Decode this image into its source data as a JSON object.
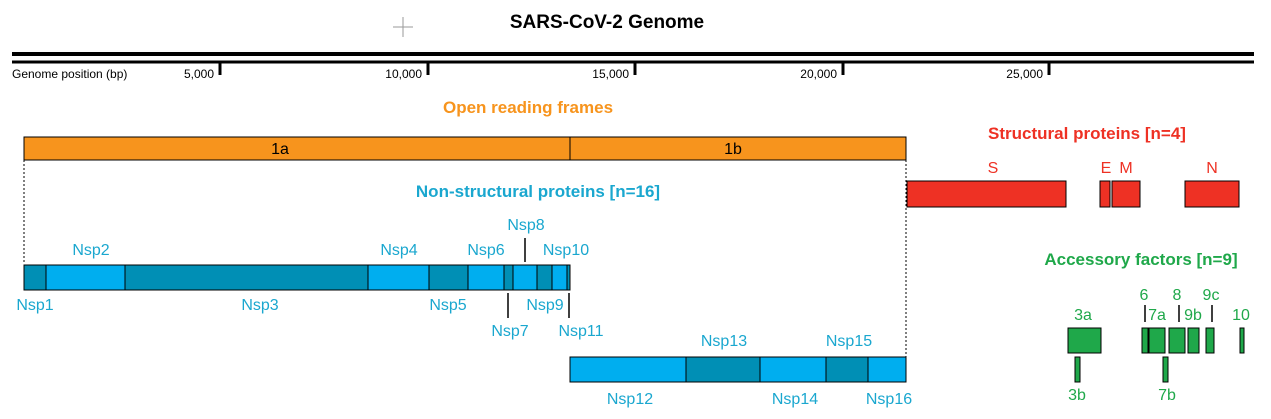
{
  "title": "SARS-CoV-2 Genome",
  "axis": {
    "label": "Genome position (bp)",
    "ticks": [
      "5,000",
      "10,000",
      "15,000",
      "20,000",
      "25,000"
    ]
  },
  "orf": {
    "heading": "Open reading frames",
    "frames": [
      "1a",
      "1b"
    ]
  },
  "structural": {
    "heading": "Structural proteins [n=4]",
    "items": [
      "S",
      "E",
      "M",
      "N"
    ]
  },
  "nsp": {
    "heading": "Non-structural proteins [n=16]",
    "items": [
      "Nsp1",
      "Nsp2",
      "Nsp3",
      "Nsp4",
      "Nsp5",
      "Nsp6",
      "Nsp7",
      "Nsp8",
      "Nsp9",
      "Nsp10",
      "Nsp11",
      "Nsp12",
      "Nsp13",
      "Nsp14",
      "Nsp15",
      "Nsp16"
    ]
  },
  "accessory": {
    "heading": "Accessory factors [n=9]",
    "items": [
      "3a",
      "3b",
      "6",
      "7a",
      "7b",
      "8",
      "9b",
      "9c",
      "10"
    ]
  },
  "colors": {
    "orf": "#f7941d",
    "structural": "#ee3124",
    "nsp_light": "#00aeef",
    "nsp_dark": "#008fb5",
    "nsp_text": "#1aa7cf",
    "accessory": "#1fa84a",
    "accessory_text": "#1fa84a"
  }
}
